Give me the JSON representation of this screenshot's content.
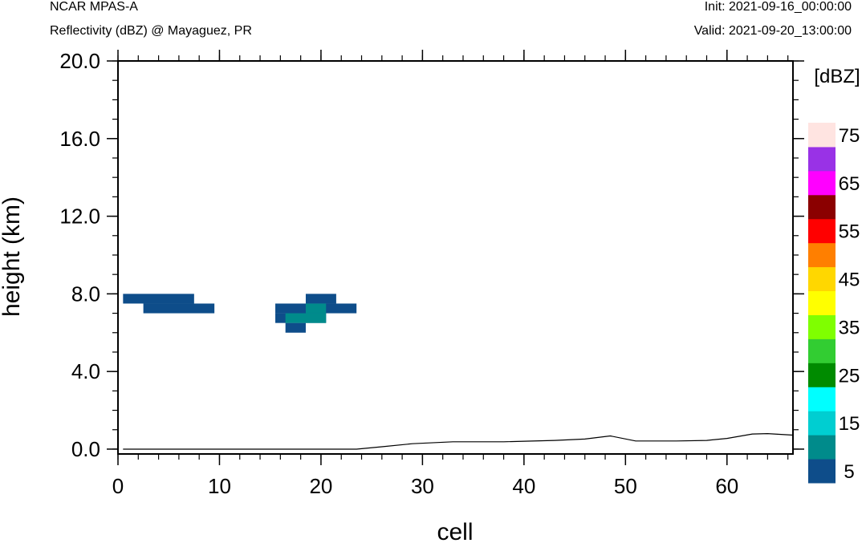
{
  "header": {
    "model": "NCAR MPAS-A",
    "field": "Reflectivity (dBZ) @ Mayaguez, PR",
    "init": "Init: 2021-09-16_00:00:00",
    "valid": "Valid: 2021-09-20_13:00:00"
  },
  "chart_data": {
    "type": "heatmap",
    "xlabel": "cell",
    "ylabel": "height (km)",
    "xlim": [
      0,
      66.5
    ],
    "ylim": [
      -0.25,
      20.0
    ],
    "x_ticks": [
      0,
      10,
      20,
      30,
      40,
      50,
      60
    ],
    "y_ticks": [
      0.0,
      4.0,
      8.0,
      12.0,
      16.0,
      20.0
    ],
    "y_tick_labels": [
      "0.0",
      "4.0",
      "8.0",
      "12.0",
      "16.0",
      "20.0"
    ],
    "grid": false,
    "colorbar": {
      "unit_label": "[dBZ]",
      "levels": [
        5,
        10,
        15,
        20,
        25,
        30,
        35,
        40,
        45,
        50,
        55,
        60,
        65,
        70,
        75
      ],
      "colors": [
        "#0e4d8a",
        "#008b8b",
        "#00ced1",
        "#00ffff",
        "#008b00",
        "#32cd32",
        "#7fff00",
        "#ffff00",
        "#ffd700",
        "#ff7f00",
        "#ff0000",
        "#8b0000",
        "#ff00ff",
        "#9932e6",
        "#ffe4e1"
      ],
      "tick_labels": [
        "5",
        "15",
        "25",
        "35",
        "45",
        "55",
        "65",
        "75"
      ]
    },
    "cells": [
      {
        "x0": 0.5,
        "x1": 7.5,
        "y0": 7.5,
        "y1": 8.0,
        "dbz": 5
      },
      {
        "x0": 2.5,
        "x1": 9.5,
        "y0": 7.0,
        "y1": 7.5,
        "dbz": 5
      },
      {
        "x0": 18.5,
        "x1": 21.5,
        "y0": 7.5,
        "y1": 8.0,
        "dbz": 5
      },
      {
        "x0": 15.5,
        "x1": 23.5,
        "y0": 7.0,
        "y1": 7.5,
        "dbz": 5
      },
      {
        "x0": 15.5,
        "x1": 20.5,
        "y0": 6.5,
        "y1": 7.0,
        "dbz": 5
      },
      {
        "x0": 16.5,
        "x1": 18.5,
        "y0": 6.0,
        "y1": 6.5,
        "dbz": 5
      },
      {
        "x0": 18.5,
        "x1": 20.5,
        "y0": 7.0,
        "y1": 7.5,
        "dbz": 10
      },
      {
        "x0": 16.5,
        "x1": 20.5,
        "y0": 6.5,
        "y1": 7.0,
        "dbz": 10
      }
    ],
    "terrain": {
      "x": [
        0.5,
        23.5,
        26,
        29,
        33,
        38,
        43,
        46,
        48.5,
        51,
        55,
        58,
        60,
        62.5,
        64,
        66.5
      ],
      "y": [
        0.0,
        0.0,
        0.12,
        0.28,
        0.38,
        0.38,
        0.45,
        0.52,
        0.68,
        0.42,
        0.42,
        0.45,
        0.55,
        0.78,
        0.8,
        0.72
      ]
    }
  }
}
